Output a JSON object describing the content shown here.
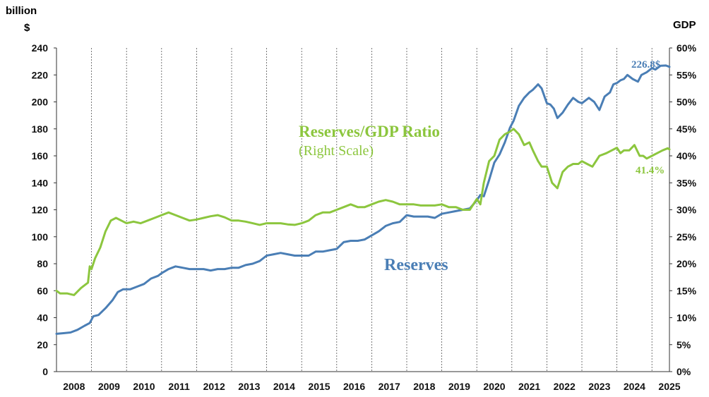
{
  "chart_data": {
    "type": "line",
    "left_axis": {
      "unit_line1": "billion",
      "unit_line2": "$",
      "ticks": [
        "0",
        "20",
        "40",
        "60",
        "80",
        "100",
        "120",
        "140",
        "160",
        "180",
        "200",
        "220",
        "240"
      ],
      "range": [
        0,
        240
      ]
    },
    "right_axis": {
      "unit": "GDP",
      "ticks": [
        "0%",
        "5%",
        "10%",
        "15%",
        "20%",
        "25%",
        "30%",
        "35%",
        "40%",
        "45%",
        "50%",
        "55%",
        "60%"
      ],
      "range": [
        0,
        60
      ]
    },
    "x_ticks": [
      "2008",
      "2009",
      "2010",
      "2011",
      "2012",
      "2013",
      "2014",
      "2015",
      "2016",
      "2017",
      "2018",
      "2019",
      "2020",
      "2021",
      "2022",
      "2023",
      "2024",
      "2025"
    ],
    "x_range": [
      2008,
      2025.5
    ],
    "grid": "vertical dashed lines at year boundaries",
    "colors": {
      "reserves": "#4a7eb5",
      "ratio": "#8cc63e"
    },
    "series": [
      {
        "name": "Reserves",
        "axis": "left",
        "color": "#4a7eb5",
        "x": [
          2008.0,
          2008.2,
          2008.4,
          2008.6,
          2008.8,
          2008.95,
          2009.05,
          2009.2,
          2009.4,
          2009.6,
          2009.75,
          2009.9,
          2010.1,
          2010.3,
          2010.5,
          2010.7,
          2010.9,
          2011.0,
          2011.2,
          2011.4,
          2011.6,
          2011.8,
          2012.0,
          2012.2,
          2012.4,
          2012.6,
          2012.8,
          2013.0,
          2013.2,
          2013.4,
          2013.6,
          2013.8,
          2014.0,
          2014.2,
          2014.4,
          2014.6,
          2014.8,
          2015.0,
          2015.2,
          2015.4,
          2015.6,
          2015.8,
          2016.0,
          2016.2,
          2016.4,
          2016.6,
          2016.8,
          2017.0,
          2017.2,
          2017.4,
          2017.6,
          2017.8,
          2018.0,
          2018.2,
          2018.4,
          2018.6,
          2018.8,
          2019.0,
          2019.2,
          2019.4,
          2019.6,
          2019.8,
          2020.0,
          2020.1,
          2020.2,
          2020.35,
          2020.5,
          2020.65,
          2020.8,
          2020.95,
          2021.05,
          2021.2,
          2021.35,
          2021.5,
          2021.6,
          2021.75,
          2021.85,
          2022.0,
          2022.1,
          2022.2,
          2022.3,
          2022.45,
          2022.6,
          2022.75,
          2022.9,
          2023.0,
          2023.1,
          2023.2,
          2023.35,
          2023.5,
          2023.65,
          2023.8,
          2023.9,
          2024.0,
          2024.1,
          2024.2,
          2024.3,
          2024.45,
          2024.6,
          2024.7,
          2024.85,
          2025.0,
          2025.1,
          2025.25,
          2025.4,
          2025.5
        ],
        "values": [
          28,
          28.5,
          29,
          31,
          34,
          36,
          41,
          42,
          47,
          53,
          59,
          61,
          61,
          63,
          65,
          69,
          71,
          73,
          76,
          78,
          77,
          76,
          76,
          76,
          75,
          76,
          76,
          77,
          77,
          79,
          80,
          82,
          86,
          87,
          88,
          87,
          86,
          86,
          86,
          89,
          89,
          90,
          91,
          96,
          97,
          97,
          98,
          101,
          104,
          108,
          110,
          111,
          116,
          115,
          115,
          115,
          114,
          117,
          118,
          119,
          120,
          121,
          127,
          131,
          130,
          142,
          155,
          161,
          170,
          181,
          186,
          197,
          203,
          207,
          209,
          213,
          210,
          199,
          198,
          195,
          188,
          192,
          198,
          203,
          200,
          199,
          201,
          203,
          200,
          194,
          204,
          207,
          213,
          214,
          216,
          217,
          220,
          217,
          215,
          220,
          222,
          225,
          224,
          226.8,
          227,
          226
        ]
      },
      {
        "name": "Reserves/GDP Ratio",
        "axis": "right",
        "color": "#8cc63e",
        "x": [
          2008.0,
          2008.1,
          2008.3,
          2008.5,
          2008.7,
          2008.9,
          2008.95,
          2009.0,
          2009.1,
          2009.25,
          2009.4,
          2009.55,
          2009.7,
          2009.85,
          2010.0,
          2010.2,
          2010.4,
          2010.6,
          2010.8,
          2011.0,
          2011.2,
          2011.4,
          2011.6,
          2011.8,
          2012.0,
          2012.2,
          2012.4,
          2012.6,
          2012.8,
          2013.0,
          2013.2,
          2013.4,
          2013.6,
          2013.8,
          2014.0,
          2014.2,
          2014.4,
          2014.6,
          2014.8,
          2015.0,
          2015.2,
          2015.4,
          2015.6,
          2015.8,
          2016.0,
          2016.2,
          2016.4,
          2016.6,
          2016.8,
          2017.0,
          2017.2,
          2017.4,
          2017.6,
          2017.8,
          2018.0,
          2018.2,
          2018.4,
          2018.6,
          2018.8,
          2019.0,
          2019.2,
          2019.4,
          2019.6,
          2019.8,
          2020.0,
          2020.1,
          2020.2,
          2020.35,
          2020.5,
          2020.65,
          2020.8,
          2020.95,
          2021.05,
          2021.2,
          2021.35,
          2021.5,
          2021.6,
          2021.75,
          2021.85,
          2022.0,
          2022.15,
          2022.3,
          2022.45,
          2022.6,
          2022.75,
          2022.9,
          2023.0,
          2023.15,
          2023.3,
          2023.5,
          2023.7,
          2023.85,
          2024.0,
          2024.1,
          2024.2,
          2024.35,
          2024.5,
          2024.65,
          2024.75,
          2024.85,
          2025.0,
          2025.15,
          2025.3,
          2025.45,
          2025.5
        ],
        "values": [
          15,
          14.5,
          14.5,
          14.2,
          15.5,
          16.5,
          19.5,
          19,
          21,
          23,
          26,
          28,
          28.5,
          28,
          27.5,
          27.8,
          27.5,
          28,
          28.5,
          29,
          29.5,
          29,
          28.5,
          28,
          28.2,
          28.5,
          28.8,
          29,
          28.6,
          28,
          28,
          27.8,
          27.5,
          27.2,
          27.5,
          27.5,
          27.5,
          27.3,
          27.2,
          27.5,
          28,
          29,
          29.5,
          29.5,
          30,
          30.5,
          31,
          30.5,
          30.5,
          31,
          31.5,
          31.8,
          31.5,
          31,
          31,
          31,
          30.8,
          30.8,
          30.8,
          31,
          30.5,
          30.5,
          30,
          30,
          32,
          31,
          35,
          39,
          40,
          43,
          44,
          44.5,
          45,
          44,
          42,
          42.5,
          41,
          39,
          38,
          38,
          35,
          34,
          37,
          38,
          38.5,
          38.5,
          39,
          38.5,
          38,
          40,
          40.5,
          41,
          41.5,
          40.5,
          41,
          41,
          42,
          40,
          40,
          39.5,
          40,
          40.5,
          41,
          41.4,
          41.2
        ]
      }
    ],
    "annotations": {
      "ratio_title": "Reserves/GDP Ratio",
      "ratio_subtitle": "(Right Scale)",
      "reserves_label": "Reserves",
      "reserves_end_value": "226.8$",
      "ratio_end_value": "41.4%"
    }
  }
}
